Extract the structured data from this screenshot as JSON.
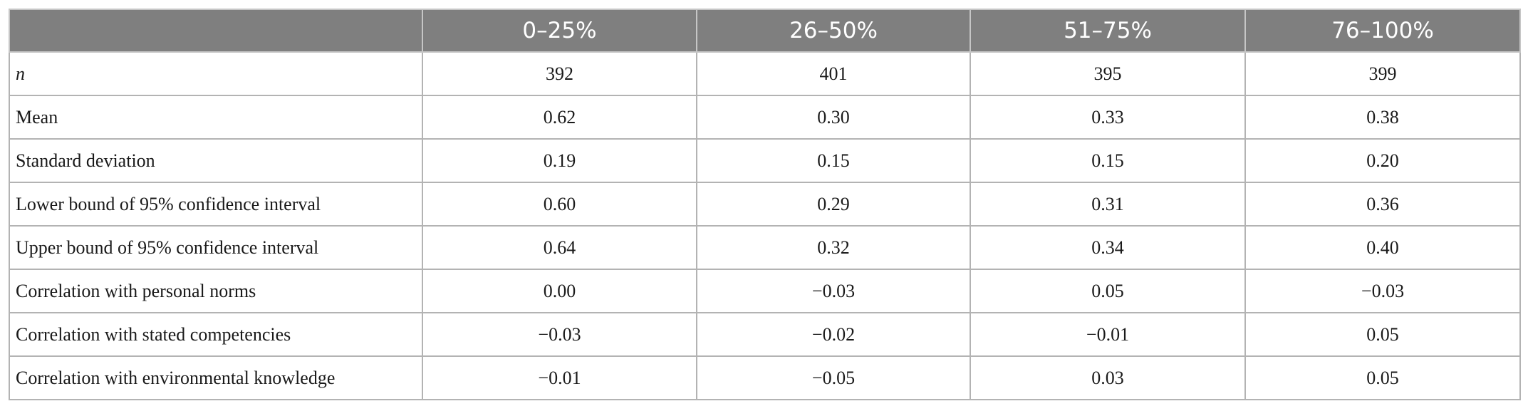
{
  "table": {
    "headers": [
      "",
      "0–25%",
      "26–50%",
      "51–75%",
      "76–100%"
    ],
    "rows": [
      {
        "label": "n",
        "values": [
          "392",
          "401",
          "395",
          "399"
        ]
      },
      {
        "label": "Mean",
        "values": [
          "0.62",
          "0.30",
          "0.33",
          "0.38"
        ]
      },
      {
        "label": "Standard deviation",
        "values": [
          "0.19",
          "0.15",
          "0.15",
          "0.20"
        ]
      },
      {
        "label": "Lower bound of 95% confidence interval",
        "values": [
          "0.60",
          "0.29",
          "0.31",
          "0.36"
        ]
      },
      {
        "label": "Upper bound of 95% confidence interval",
        "values": [
          "0.64",
          "0.32",
          "0.34",
          "0.40"
        ]
      },
      {
        "label": "Correlation with personal norms",
        "values": [
          "0.00",
          "−0.03",
          "0.05",
          "−0.03"
        ]
      },
      {
        "label": "Correlation with stated competencies",
        "values": [
          "−0.03",
          "−0.02",
          "−0.01",
          "0.05"
        ]
      },
      {
        "label": "Correlation with environmental knowledge",
        "values": [
          "−0.01",
          "−0.05",
          "0.03",
          "0.05"
        ]
      }
    ]
  }
}
